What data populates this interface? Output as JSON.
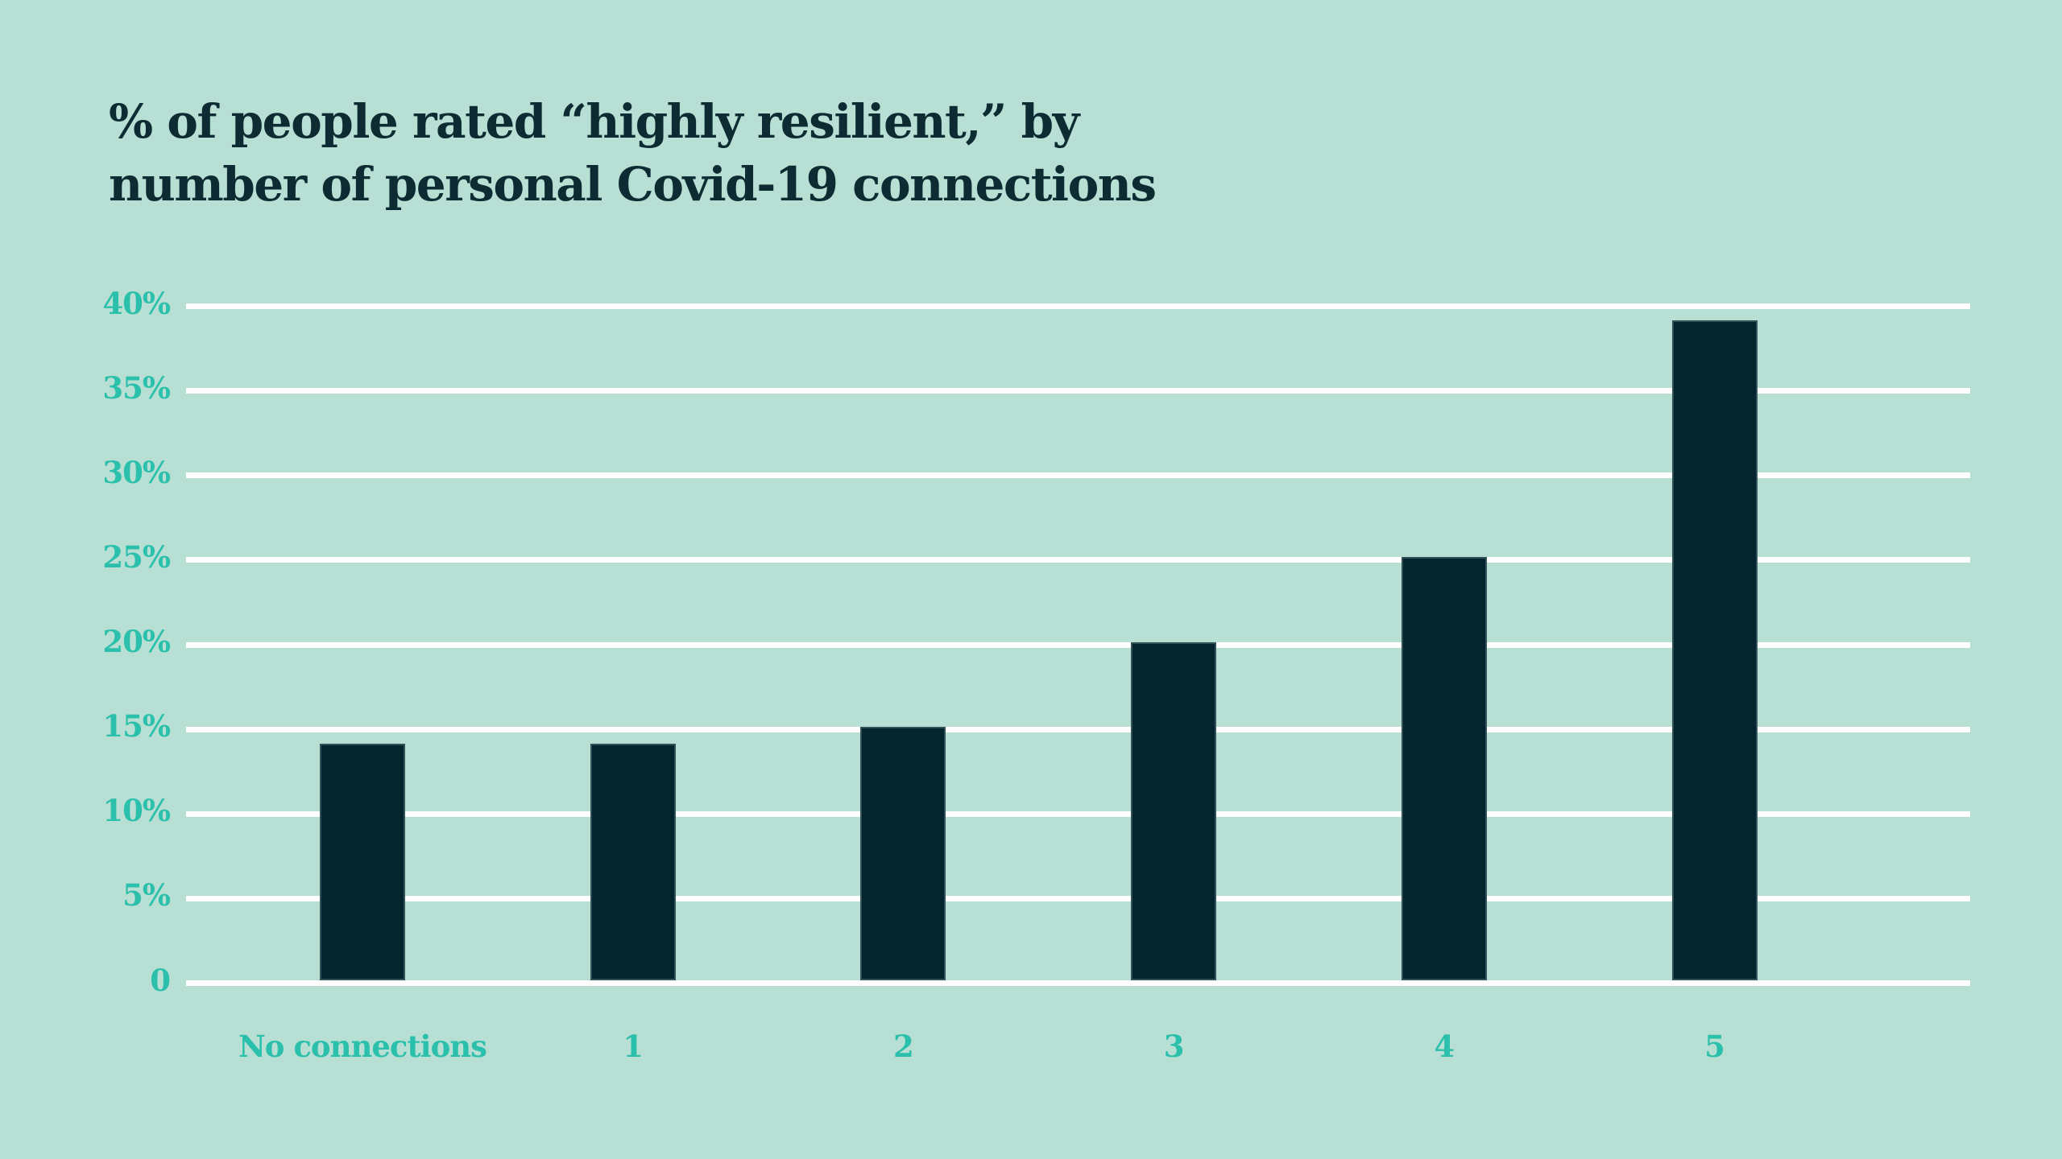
{
  "page": {
    "background_color": "#b8dfd3"
  },
  "chart_data": {
    "type": "bar",
    "title": "% of people rated “highly resilient,” by number of personal Covid-19 connections",
    "title_line1": "% of people rated “highly resilient,” by",
    "title_line2": "number of personal Covid-19 connections",
    "categories": [
      "No connections",
      "1",
      "2",
      "3",
      "4",
      "5"
    ],
    "values": [
      14,
      14,
      15,
      20,
      25,
      39
    ],
    "unit": "%",
    "xlabel": "",
    "ylabel": "",
    "ylim": [
      0,
      40
    ],
    "ytick_step": 5,
    "yticks": [
      {
        "value": 0,
        "label": "0"
      },
      {
        "value": 5,
        "label": "5%"
      },
      {
        "value": 10,
        "label": "10%"
      },
      {
        "value": 15,
        "label": "15%"
      },
      {
        "value": 20,
        "label": "20%"
      },
      {
        "value": 25,
        "label": "25%"
      },
      {
        "value": 30,
        "label": "30%"
      },
      {
        "value": 35,
        "label": "35%"
      },
      {
        "value": 40,
        "label": "40%"
      }
    ],
    "grid": "horizontal",
    "legend": "none",
    "colors": {
      "background": "#b8dfd3",
      "bar": "#04252e",
      "title": "#0d2b33",
      "axis_labels": "#2bc0ab",
      "gridline": "#ffffff"
    }
  }
}
